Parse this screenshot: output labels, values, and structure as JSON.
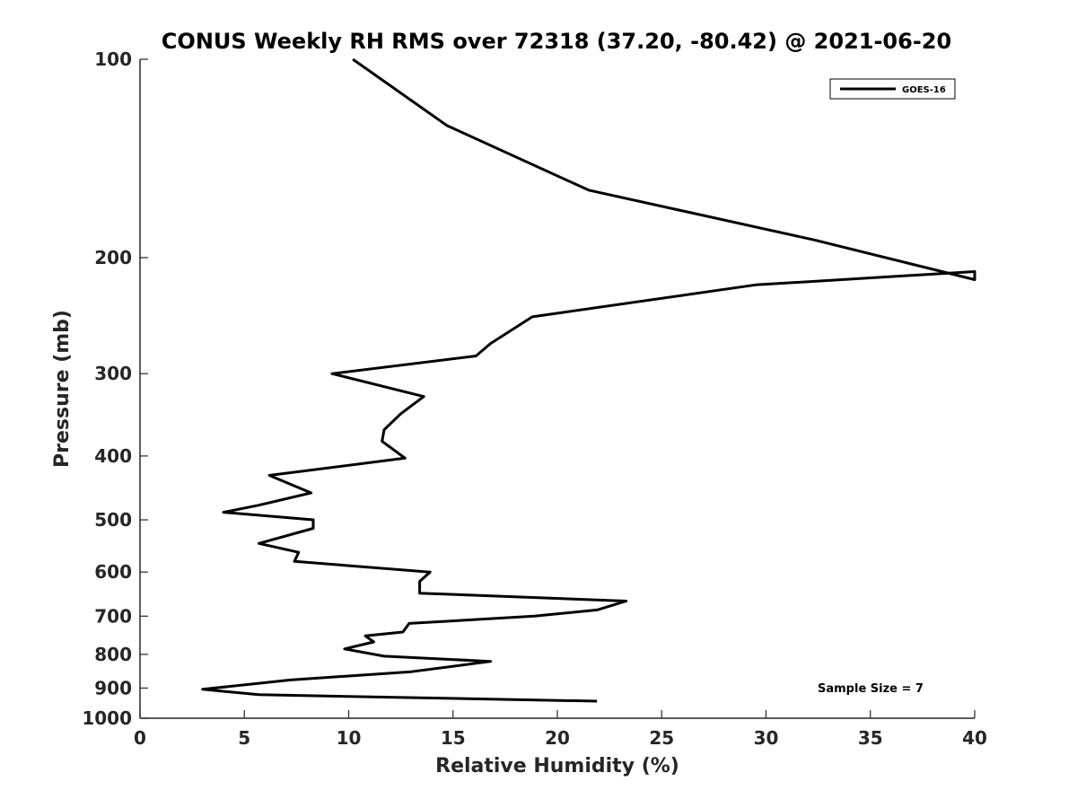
{
  "chart_data": {
    "type": "line",
    "title": "CONUS Weekly RH RMS over 72318 (37.20, -80.42) @ 2021-06-20",
    "xlabel": "Relative Humidity (%)",
    "ylabel": "Pressure (mb)",
    "xlim": [
      0,
      40
    ],
    "ylim": [
      100,
      1000
    ],
    "y_scale": "log",
    "y_reversed": true,
    "grid": false,
    "legend_position": "top-right",
    "xticks": [
      "0",
      "5",
      "10",
      "15",
      "20",
      "25",
      "30",
      "35",
      "40"
    ],
    "yticks": [
      "100",
      "200",
      "300",
      "400",
      "500",
      "600",
      "700",
      "800",
      "900",
      "1000"
    ],
    "annotation": "Sample Size = 7",
    "series": [
      {
        "name": "GOES-16",
        "color": "#000000",
        "points": [
          [
            10.2,
            100
          ],
          [
            14.7,
            126
          ],
          [
            21.5,
            158
          ],
          [
            32.3,
            188
          ],
          [
            40.0,
            216
          ],
          [
            40.0,
            210
          ],
          [
            29.5,
            220
          ],
          [
            18.8,
            246
          ],
          [
            16.8,
            270
          ],
          [
            16.1,
            282
          ],
          [
            9.2,
            300
          ],
          [
            13.6,
            325
          ],
          [
            12.5,
            345
          ],
          [
            11.7,
            365
          ],
          [
            11.6,
            380
          ],
          [
            12.7,
            403
          ],
          [
            6.2,
            428
          ],
          [
            8.2,
            455
          ],
          [
            5.7,
            475
          ],
          [
            4.0,
            487
          ],
          [
            8.3,
            500
          ],
          [
            8.3,
            515
          ],
          [
            5.7,
            543
          ],
          [
            7.6,
            560
          ],
          [
            7.4,
            578
          ],
          [
            13.9,
            600
          ],
          [
            13.4,
            620
          ],
          [
            13.4,
            646
          ],
          [
            23.3,
            664
          ],
          [
            21.9,
            685
          ],
          [
            18.9,
            700
          ],
          [
            12.9,
            718
          ],
          [
            12.6,
            740
          ],
          [
            10.8,
            750
          ],
          [
            11.2,
            766
          ],
          [
            9.8,
            785
          ],
          [
            11.7,
            805
          ],
          [
            16.8,
            820
          ],
          [
            13.0,
            850
          ],
          [
            7.2,
            875
          ],
          [
            3.0,
            904
          ],
          [
            5.7,
            921
          ],
          [
            21.9,
            942
          ]
        ]
      }
    ]
  }
}
